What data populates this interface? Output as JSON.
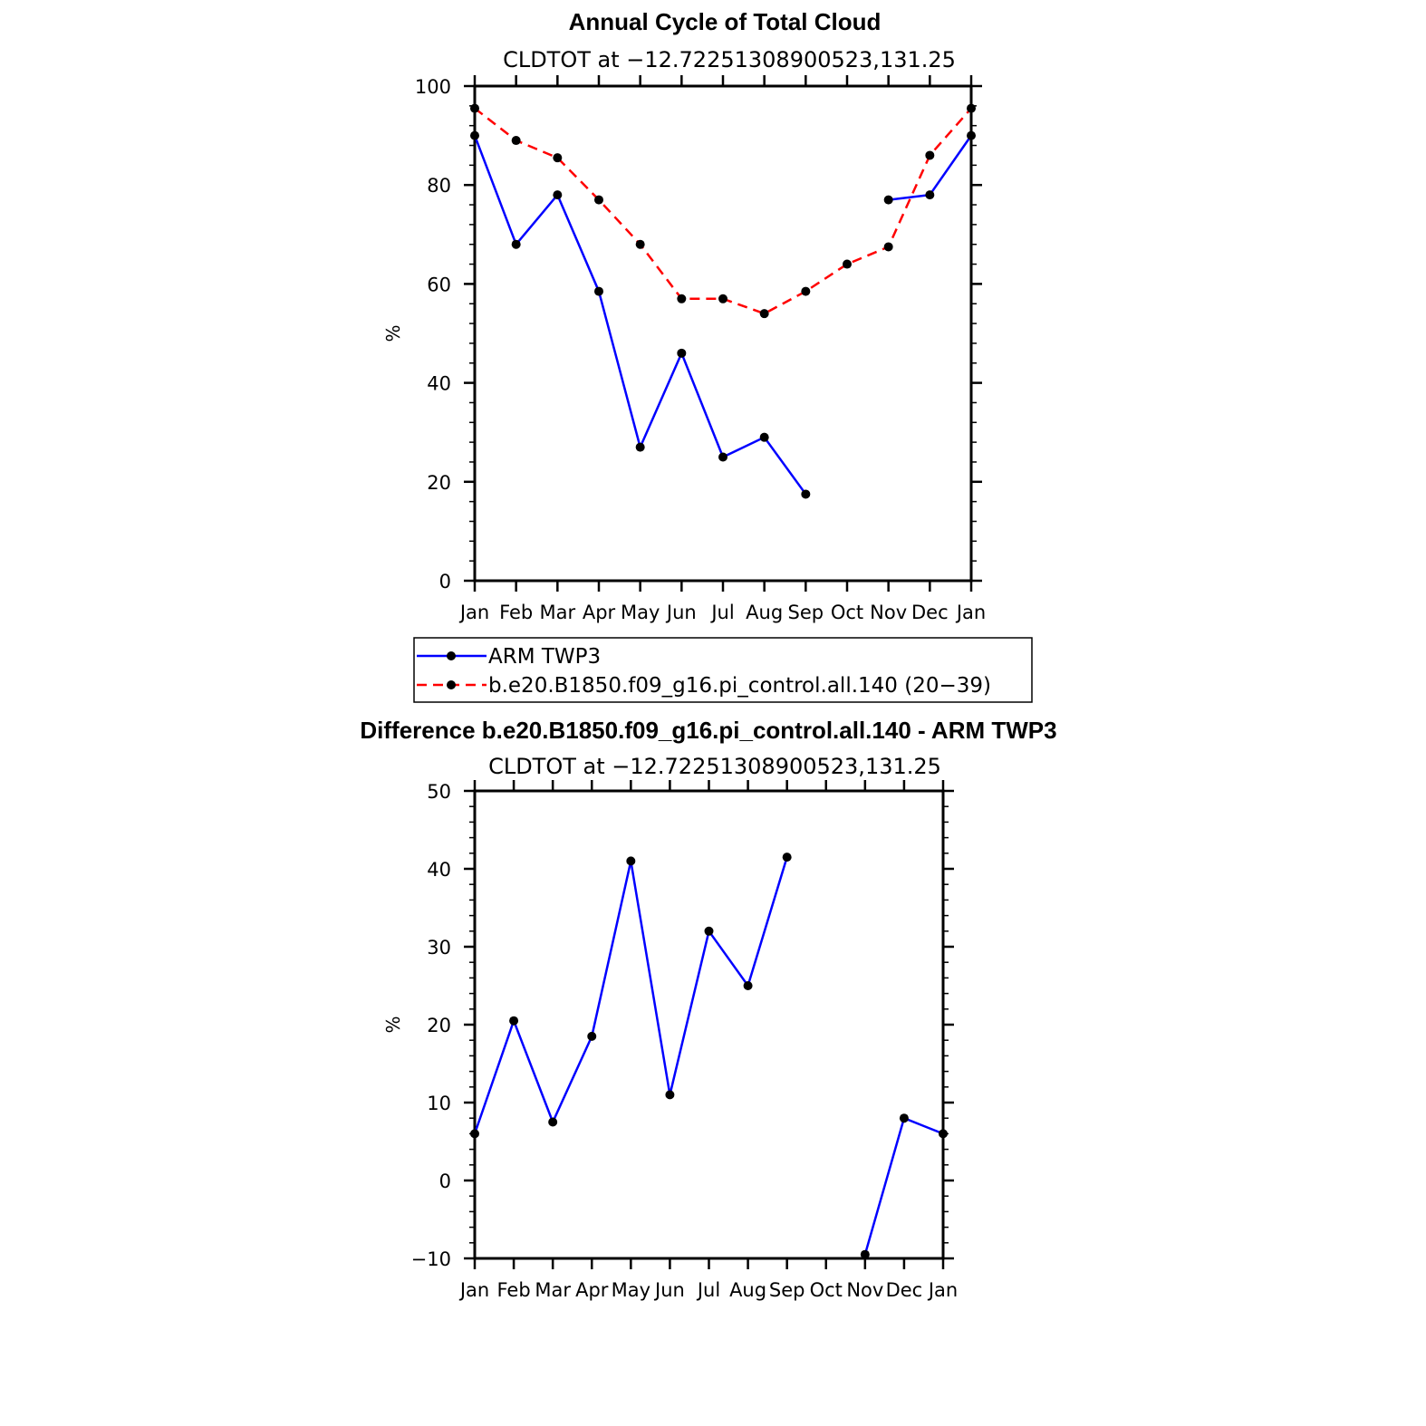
{
  "chart_data": [
    {
      "type": "line",
      "title": "Annual Cycle of Total Cloud",
      "subtitle": "CLDTOT at −12.72251308900523,131.25",
      "ylabel": "%",
      "xlabel": "",
      "ylim": [
        0,
        100
      ],
      "yticks": [
        "0",
        "20",
        "40",
        "60",
        "80",
        "100"
      ],
      "categories": [
        "Jan",
        "Feb",
        "Mar",
        "Apr",
        "May",
        "Jun",
        "Jul",
        "Aug",
        "Sep",
        "Oct",
        "Nov",
        "Dec",
        "Jan"
      ],
      "series": [
        {
          "name": "ARM TWP3",
          "color": "#0000ff",
          "dash": "solid",
          "values": [
            90,
            68,
            78,
            58.5,
            27,
            46,
            25,
            29,
            17.5,
            null,
            77,
            78,
            90
          ]
        },
        {
          "name": "b.e20.B1850.f09_g16.pi_control.all.140 (20−39)",
          "color": "#ff0000",
          "dash": "dashed",
          "values": [
            95.5,
            89,
            85.5,
            77,
            68,
            57,
            57,
            54,
            58.5,
            64,
            67.5,
            86,
            95.5
          ]
        }
      ],
      "legend_position": "below"
    },
    {
      "type": "line",
      "title": "Difference b.e20.B1850.f09_g16.pi_control.all.140 - ARM TWP3",
      "subtitle": "CLDTOT at −12.72251308900523,131.25",
      "ylabel": "%",
      "xlabel": "",
      "ylim": [
        -10,
        50
      ],
      "yticks": [
        "−10",
        "0",
        "10",
        "20",
        "30",
        "40",
        "50"
      ],
      "categories": [
        "Jan",
        "Feb",
        "Mar",
        "Apr",
        "May",
        "Jun",
        "Jul",
        "Aug",
        "Sep",
        "Oct",
        "Nov",
        "Dec",
        "Jan"
      ],
      "series": [
        {
          "color": "#0000ff",
          "dash": "solid",
          "values": [
            6,
            20.5,
            7.5,
            18.5,
            41,
            11,
            32,
            25,
            41.5,
            null,
            -9.5,
            8,
            6
          ]
        }
      ]
    }
  ]
}
